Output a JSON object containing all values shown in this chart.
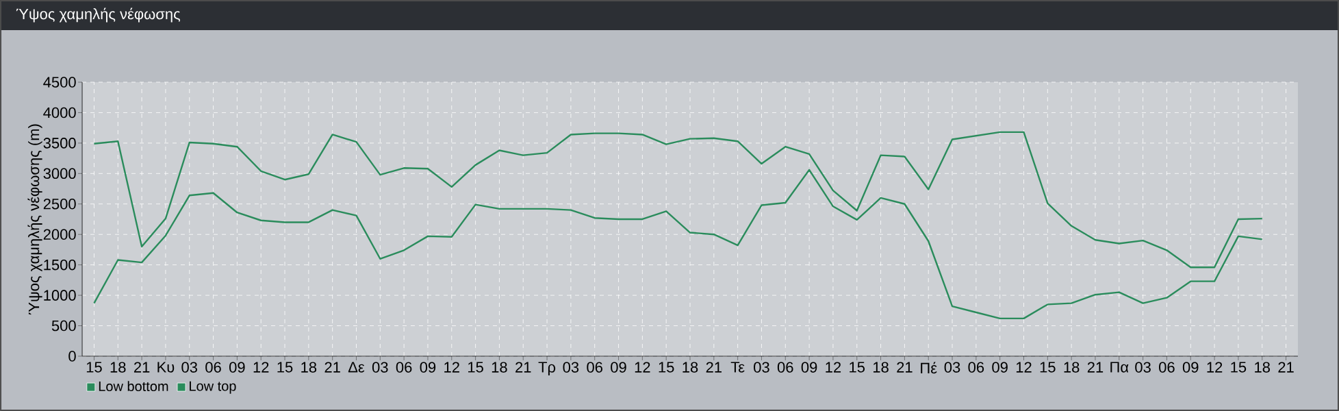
{
  "chart_data": {
    "type": "line",
    "title": "Ύψος χαμηλής νέφωσης",
    "ylabel": "Ύψος χαμηλής νέφωσης (m)",
    "categories": [
      "15",
      "18",
      "21",
      "Κυ",
      "03",
      "06",
      "09",
      "12",
      "15",
      "18",
      "21",
      "Δε",
      "03",
      "06",
      "09",
      "12",
      "15",
      "18",
      "21",
      "Τρ",
      "03",
      "06",
      "09",
      "12",
      "15",
      "18",
      "21",
      "Τε",
      "03",
      "06",
      "09",
      "12",
      "15",
      "18",
      "21",
      "Πέ",
      "03",
      "06",
      "09",
      "12",
      "15",
      "18",
      "21",
      "Πα",
      "03",
      "06",
      "09",
      "12",
      "15",
      "18",
      "21"
    ],
    "series": [
      {
        "name": "Low bottom",
        "color": "#2a8c5c",
        "values": [
          870,
          1580,
          1540,
          1980,
          2640,
          2680,
          2360,
          2230,
          2200,
          2200,
          2400,
          2310,
          1600,
          1740,
          1970,
          1960,
          2490,
          2420,
          2420,
          2420,
          2400,
          2270,
          2250,
          2250,
          2380,
          2030,
          2000,
          1820,
          2480,
          2520,
          3060,
          2460,
          2240,
          2600,
          2500,
          1890,
          820,
          720,
          620,
          620,
          850,
          870,
          1010,
          1050,
          870,
          960,
          1230,
          1230,
          1970,
          1920,
          null
        ]
      },
      {
        "name": "Low top",
        "color": "#2a8c5c",
        "values": [
          3490,
          3530,
          1800,
          2260,
          3510,
          3490,
          3440,
          3040,
          2900,
          2990,
          3640,
          3520,
          2980,
          3090,
          3080,
          2780,
          3140,
          3380,
          3300,
          3340,
          3640,
          3660,
          3660,
          3640,
          3480,
          3570,
          3580,
          3530,
          3160,
          3440,
          3320,
          2720,
          2390,
          3300,
          3280,
          2740,
          3560,
          3620,
          3680,
          3680,
          2510,
          2140,
          1910,
          1850,
          1900,
          1740,
          1460,
          1460,
          2250,
          2260,
          null
        ]
      }
    ],
    "ylim": [
      0,
      4500
    ],
    "yticks": [
      0,
      500,
      1000,
      1500,
      2000,
      2500,
      3000,
      3500,
      4000,
      4500
    ],
    "grid": true,
    "legend": "bottom left"
  }
}
